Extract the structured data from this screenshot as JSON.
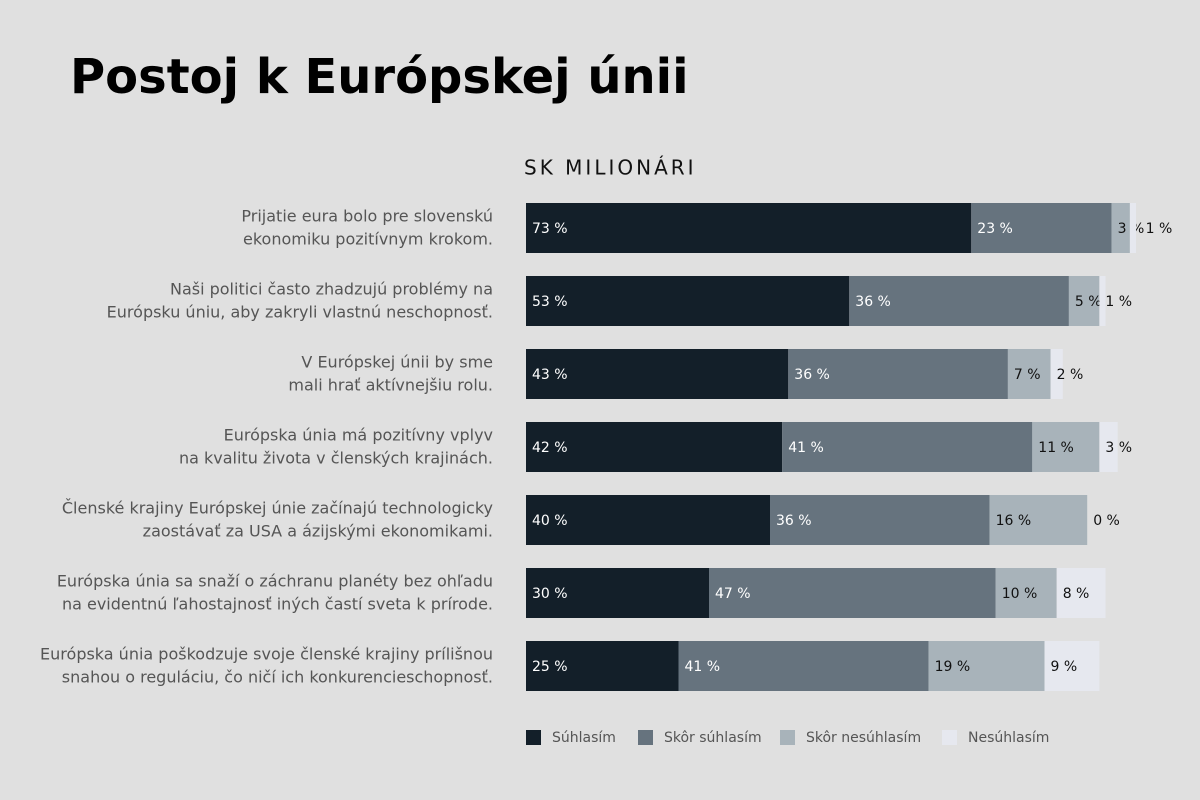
{
  "chart_data": {
    "type": "stacked-bar-horizontal",
    "title": "Postoj k Európskej únii",
    "subtitle": "SK MILIONÁRI",
    "categories": [
      [
        "Prijatie eura bolo pre slovenskú",
        "ekonomiku pozitívnym krokom."
      ],
      [
        "Naši politici často zhadzujú problémy na",
        "Európsku úniu, aby zakryli vlastnú neschopnosť."
      ],
      [
        "V Európskej únii by sme",
        "mali hrať aktívnejšiu rolu."
      ],
      [
        "Európska únia má pozitívny vplyv",
        "na kvalitu života v členských krajinách."
      ],
      [
        "Členské krajiny Európskej únie začínajú technologicky",
        "zaostávať za USA a ázijskými ekonomikami."
      ],
      [
        "Európska únia sa snaží o záchranu planéty bez ohľadu",
        "na evidentnú ľahostajnosť iných častí sveta k prírode."
      ],
      [
        "Európska únia poškodzuje svoje členské krajiny prílišnou",
        "snahou o reguláciu, čo ničí ich konkurencieschopnosť."
      ]
    ],
    "series": [
      {
        "name": "Súhlasím",
        "color": "#131f29",
        "values": [
          73,
          53,
          43,
          42,
          40,
          30,
          25
        ],
        "value_labels": [
          "73 %",
          "53 %",
          "43 %",
          "42 %",
          "40 %",
          "30 %",
          "25 %"
        ]
      },
      {
        "name": "Skôr súhlasím",
        "color": "#66737e",
        "values": [
          23,
          36,
          36,
          41,
          36,
          47,
          41
        ],
        "value_labels": [
          "23 %",
          "36 %",
          "36 %",
          "41 %",
          "36 %",
          "47 %",
          "41 %"
        ]
      },
      {
        "name": "Skôr nesúhlasím",
        "color": "#a8b3ba",
        "values": [
          3,
          5,
          7,
          11,
          16,
          10,
          19
        ],
        "value_labels": [
          "3 %",
          "5 %",
          "7 %",
          "11 %",
          "16 %",
          "10 %",
          "19 %"
        ]
      },
      {
        "name": "Nesúhlasím",
        "color": "#e6e8ef",
        "values": [
          1,
          1,
          2,
          3,
          0,
          8,
          9
        ],
        "value_labels": [
          "1 %",
          "1 %",
          "2 %",
          "3 %",
          "0 %",
          "8 %",
          "9 %"
        ]
      }
    ],
    "xlim": [
      0,
      100
    ]
  }
}
